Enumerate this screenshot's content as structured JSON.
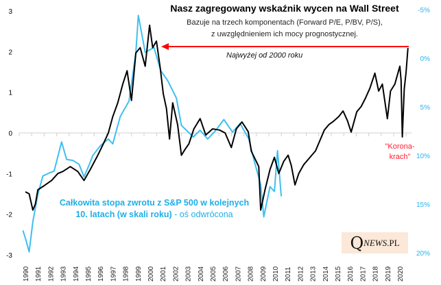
{
  "chart_data": {
    "type": "line",
    "title": "Nasz zagregowany wskaźnik wycen na Wall Street",
    "subtitle_lines": [
      "Bazuje na trzech komponentach (Forward P/E, P/BV, P/S),",
      "z uwzględnieniem ich mocy prognostycznej."
    ],
    "x_ticks": [
      "1990",
      "1991",
      "1992",
      "1993",
      "1994",
      "1995",
      "1996",
      "1997",
      "1998",
      "1999",
      "2000",
      "2001",
      "2002",
      "2003",
      "2004",
      "2005",
      "2006",
      "2007",
      "2008",
      "2009",
      "2010",
      "2011",
      "2012",
      "2013",
      "2014",
      "2015",
      "2016",
      "2017",
      "2018",
      "2019",
      "2020"
    ],
    "y_left": {
      "ticks": [
        "3",
        "2",
        "1",
        "0",
        "-1",
        "-2",
        "-3"
      ],
      "range": [
        -3,
        3
      ]
    },
    "y_right": {
      "ticks": [
        "-5%",
        "0%",
        "5%",
        "10%",
        "15%",
        "20%"
      ],
      "range": [
        -5,
        20
      ],
      "inverted": true
    },
    "grid": "zero line only",
    "series": [
      {
        "axis": "left",
        "color": "#000000",
        "points": [
          [
            1990.0,
            -1.45
          ],
          [
            1990.3,
            -1.5
          ],
          [
            1990.6,
            -1.9
          ],
          [
            1990.8,
            -1.75
          ],
          [
            1991.0,
            -1.4
          ],
          [
            1991.5,
            -1.3
          ],
          [
            1992.1,
            -1.17
          ],
          [
            1992.6,
            -1.0
          ],
          [
            1993.0,
            -0.95
          ],
          [
            1993.6,
            -0.83
          ],
          [
            1994.2,
            -0.95
          ],
          [
            1994.7,
            -1.17
          ],
          [
            1995.2,
            -0.9
          ],
          [
            1995.8,
            -0.55
          ],
          [
            1996.2,
            -0.3
          ],
          [
            1996.65,
            0.0
          ],
          [
            1997.0,
            0.4
          ],
          [
            1997.4,
            0.74
          ],
          [
            1997.8,
            1.2
          ],
          [
            1998.15,
            1.53
          ],
          [
            1998.5,
            0.8
          ],
          [
            1998.85,
            1.97
          ],
          [
            1999.2,
            2.1
          ],
          [
            1999.6,
            1.64
          ],
          [
            1999.95,
            2.65
          ],
          [
            2000.2,
            2.1
          ],
          [
            2000.5,
            2.26
          ],
          [
            2000.8,
            1.6
          ],
          [
            2001.05,
            0.96
          ],
          [
            2001.3,
            0.6
          ],
          [
            2001.55,
            -0.15
          ],
          [
            2001.8,
            0.74
          ],
          [
            2002.2,
            0.2
          ],
          [
            2002.5,
            -0.55
          ],
          [
            2002.8,
            -0.4
          ],
          [
            2003.1,
            -0.27
          ],
          [
            2003.5,
            0.1
          ],
          [
            2004.0,
            0.35
          ],
          [
            2004.45,
            -0.05
          ],
          [
            2005.0,
            0.1
          ],
          [
            2005.55,
            0.07
          ],
          [
            2006.0,
            0.0
          ],
          [
            2006.5,
            -0.36
          ],
          [
            2006.9,
            0.1
          ],
          [
            2007.35,
            0.27
          ],
          [
            2007.85,
            0.03
          ],
          [
            2008.1,
            -0.45
          ],
          [
            2008.7,
            -0.83
          ],
          [
            2008.85,
            -1.9
          ],
          [
            2009.2,
            -1.4
          ],
          [
            2009.6,
            -0.9
          ],
          [
            2009.95,
            -0.6
          ],
          [
            2010.3,
            -1.0
          ],
          [
            2010.7,
            -0.7
          ],
          [
            2011.05,
            -0.55
          ],
          [
            2011.3,
            -0.8
          ],
          [
            2011.6,
            -1.28
          ],
          [
            2011.9,
            -1.0
          ],
          [
            2012.3,
            -0.78
          ],
          [
            2012.8,
            -0.6
          ],
          [
            2013.25,
            -0.44
          ],
          [
            2013.95,
            0.07
          ],
          [
            2014.3,
            0.2
          ],
          [
            2014.7,
            0.29
          ],
          [
            2015.1,
            0.4
          ],
          [
            2015.45,
            0.54
          ],
          [
            2015.8,
            0.3
          ],
          [
            2016.1,
            0.02
          ],
          [
            2016.55,
            0.52
          ],
          [
            2016.9,
            0.65
          ],
          [
            2017.25,
            0.86
          ],
          [
            2017.6,
            1.1
          ],
          [
            2018.0,
            1.47
          ],
          [
            2018.3,
            1.03
          ],
          [
            2018.6,
            1.2
          ],
          [
            2019.0,
            0.35
          ],
          [
            2019.25,
            1.03
          ],
          [
            2019.6,
            1.2
          ],
          [
            2020.0,
            1.64
          ],
          [
            2020.1,
            1.3
          ],
          [
            2020.2,
            -0.1
          ],
          [
            2020.35,
            1.08
          ],
          [
            2020.5,
            1.5
          ],
          [
            2020.65,
            2.09
          ]
        ]
      },
      {
        "axis": "right",
        "color": "#3ebff0",
        "points": [
          [
            1989.8,
            17.7
          ],
          [
            1990.0,
            18.5
          ],
          [
            1990.3,
            19.9
          ],
          [
            1990.6,
            16.8
          ],
          [
            1991.0,
            14.0
          ],
          [
            1991.4,
            12.1
          ],
          [
            1991.9,
            11.8
          ],
          [
            1992.3,
            11.6
          ],
          [
            1992.9,
            8.6
          ],
          [
            1993.3,
            10.4
          ],
          [
            1993.8,
            10.5
          ],
          [
            1994.3,
            10.9
          ],
          [
            1994.7,
            12.2
          ],
          [
            1995.1,
            11.0
          ],
          [
            1995.4,
            10.0
          ],
          [
            1996.0,
            9.0
          ],
          [
            1996.65,
            8.3
          ],
          [
            1997.0,
            8.8
          ],
          [
            1997.6,
            6.0
          ],
          [
            1998.3,
            4.4
          ],
          [
            1998.85,
            -0.6
          ],
          [
            1999.05,
            -4.4
          ],
          [
            1999.6,
            -0.6
          ],
          [
            2000.3,
            -1.1
          ],
          [
            2000.85,
            1.3
          ],
          [
            2001.4,
            2.3
          ],
          [
            2002.1,
            4.1
          ],
          [
            2002.5,
            6.9
          ],
          [
            2003.45,
            8.1
          ],
          [
            2004.0,
            7.4
          ],
          [
            2004.6,
            8.3
          ],
          [
            2005.2,
            7.5
          ],
          [
            2005.9,
            6.3
          ],
          [
            2006.6,
            7.6
          ],
          [
            2007.2,
            6.7
          ],
          [
            2007.9,
            8.3
          ],
          [
            2008.3,
            10.4
          ],
          [
            2008.85,
            13.0
          ],
          [
            2009.1,
            16.3
          ],
          [
            2009.6,
            13.2
          ],
          [
            2009.95,
            13.7
          ],
          [
            2010.2,
            9.5
          ],
          [
            2010.5,
            14.2
          ]
        ]
      }
    ],
    "annotations": {
      "arrow_label": "Najwyżej od 2000 roku",
      "korona_line1": "\"Korona-",
      "korona_line2": "krach\"",
      "blue_label_bold1": "Całkowita stopa zwrotu z S&P 500 w kolejnych",
      "blue_label_bold2": "10. latach (w skali roku)",
      "blue_label_normal": " - oś odwrócona"
    },
    "colors": {
      "arrow": "#ff0000",
      "left_axis_text": "#000000",
      "right_axis_text": "#29b2ee",
      "logo_bg": "#fbe8d8"
    }
  },
  "logo": {
    "q": "Q",
    "rest": "NEWS",
    "suffix": ".PL"
  }
}
